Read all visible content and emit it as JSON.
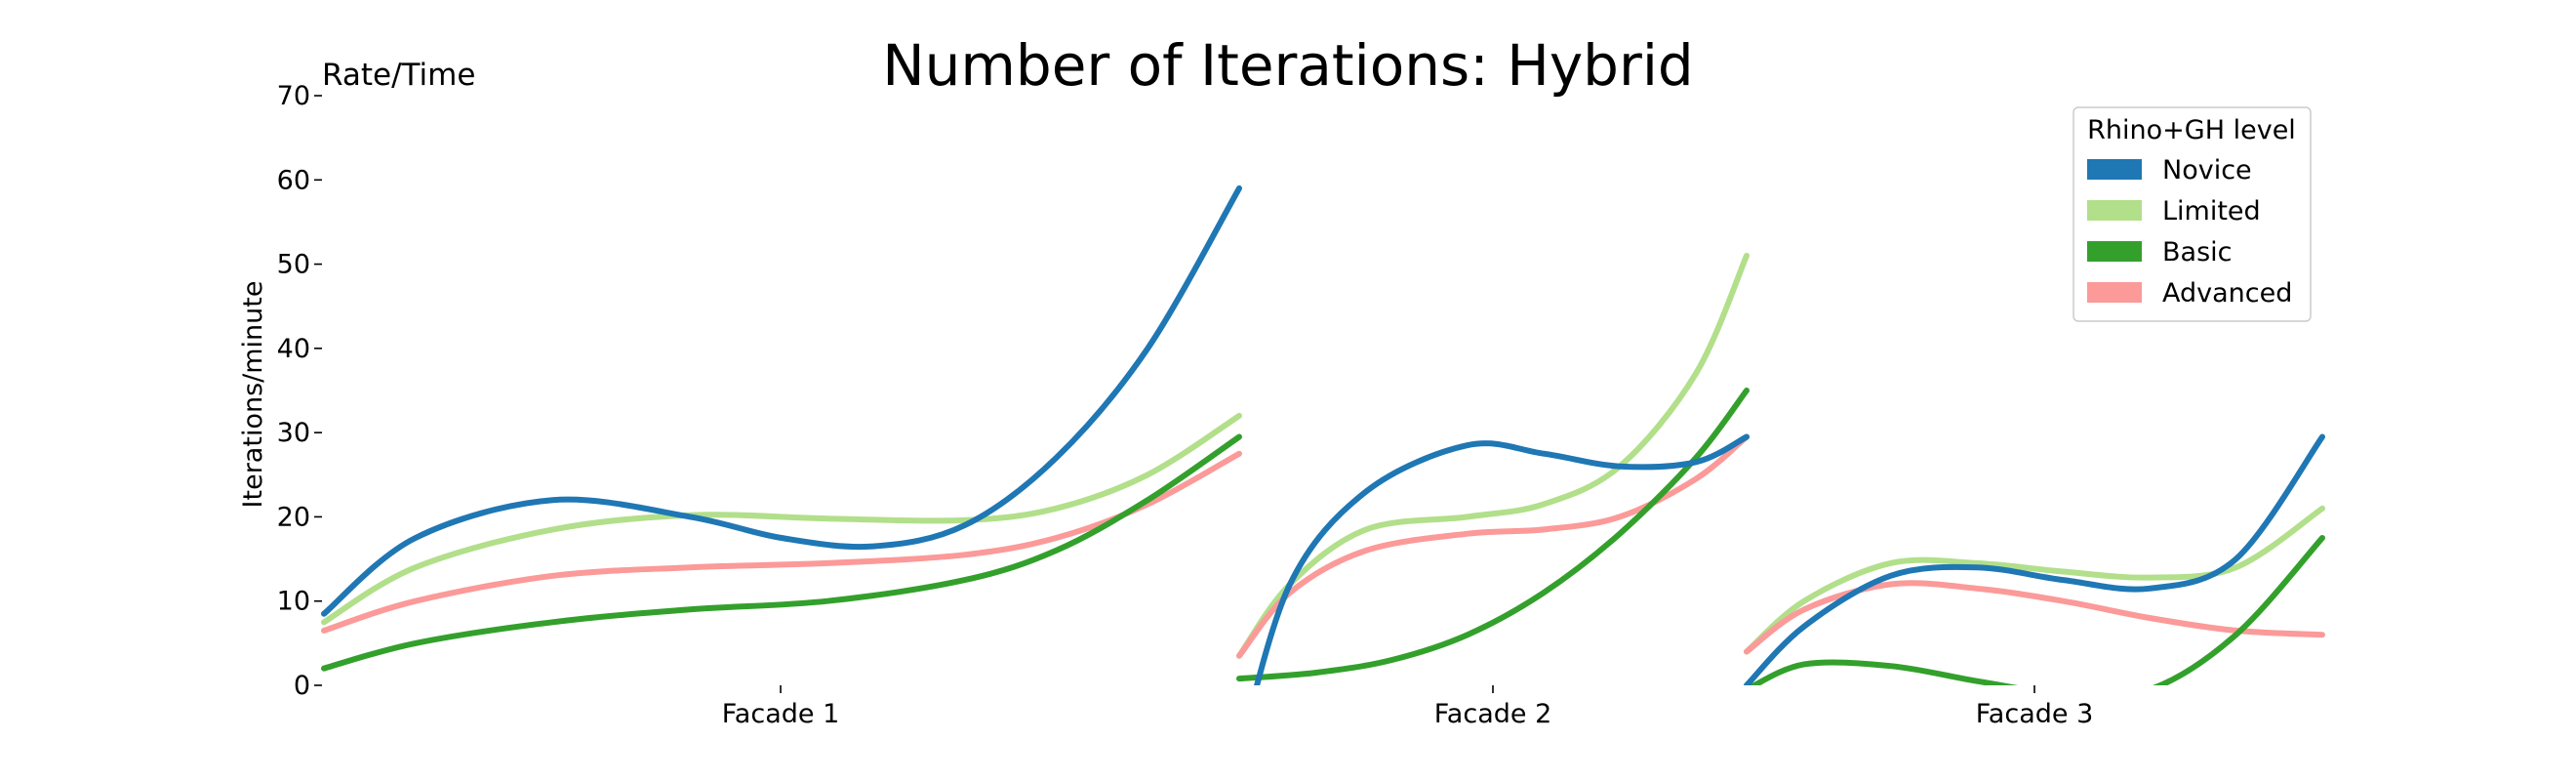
{
  "chart_data": {
    "type": "line",
    "title": "Number of Iterations: Hybrid",
    "corner_label": "Rate/Time",
    "ylabel": "Iterations/minute",
    "xlabel": "",
    "ylim": [
      0,
      70
    ],
    "yticks": [
      0,
      10,
      20,
      30,
      40,
      50,
      60,
      70
    ],
    "grid": false,
    "legend": {
      "title": "Rhino+GH level",
      "position": "top-right"
    },
    "categories": [
      "Facade 1",
      "Facade 2",
      "Facade 3"
    ],
    "series": [
      {
        "name": "Novice",
        "color": "#1f77b4",
        "values": [
          [
            [
              0,
              8.5
            ],
            [
              0.1,
              17.5
            ],
            [
              0.25,
              22
            ],
            [
              0.4,
              20
            ],
            [
              0.5,
              17.5
            ],
            [
              0.6,
              16.5
            ],
            [
              0.7,
              19
            ],
            [
              0.8,
              27
            ],
            [
              0.9,
              40
            ],
            [
              1.0,
              59
            ]
          ],
          [
            [
              0,
              -8
            ],
            [
              0.1,
              12
            ],
            [
              0.25,
              23
            ],
            [
              0.45,
              28.5
            ],
            [
              0.6,
              27.5
            ],
            [
              0.75,
              26
            ],
            [
              0.9,
              26.5
            ],
            [
              1.0,
              29.5
            ]
          ],
          [
            [
              0,
              0
            ],
            [
              0.1,
              7
            ],
            [
              0.25,
              13
            ],
            [
              0.4,
              14
            ],
            [
              0.55,
              12.5
            ],
            [
              0.7,
              11.5
            ],
            [
              0.85,
              15
            ],
            [
              1.0,
              29.5
            ]
          ]
        ]
      },
      {
        "name": "Limited",
        "color": "#b2df8a",
        "values": [
          [
            [
              0,
              7.5
            ],
            [
              0.1,
              14
            ],
            [
              0.25,
              18.5
            ],
            [
              0.4,
              20.2
            ],
            [
              0.55,
              19.8
            ],
            [
              0.7,
              19.6
            ],
            [
              0.8,
              21
            ],
            [
              0.9,
              25
            ],
            [
              1.0,
              32
            ]
          ],
          [
            [
              0,
              3.5
            ],
            [
              0.1,
              12
            ],
            [
              0.25,
              18.5
            ],
            [
              0.45,
              20
            ],
            [
              0.6,
              21.5
            ],
            [
              0.75,
              26
            ],
            [
              0.9,
              37
            ],
            [
              1.0,
              51
            ]
          ],
          [
            [
              0,
              4
            ],
            [
              0.1,
              10
            ],
            [
              0.25,
              14.5
            ],
            [
              0.4,
              14.5
            ],
            [
              0.55,
              13.5
            ],
            [
              0.7,
              12.8
            ],
            [
              0.85,
              14
            ],
            [
              1.0,
              21
            ]
          ]
        ]
      },
      {
        "name": "Basic",
        "color": "#33a02c",
        "values": [
          [
            [
              0,
              2
            ],
            [
              0.1,
              5
            ],
            [
              0.25,
              7.5
            ],
            [
              0.4,
              9
            ],
            [
              0.55,
              10
            ],
            [
              0.7,
              12.5
            ],
            [
              0.8,
              16
            ],
            [
              0.9,
              22
            ],
            [
              1.0,
              29.5
            ]
          ],
          [
            [
              0,
              0.8
            ],
            [
              0.15,
              1.5
            ],
            [
              0.3,
              3
            ],
            [
              0.45,
              6
            ],
            [
              0.6,
              11
            ],
            [
              0.75,
              18
            ],
            [
              0.9,
              27
            ],
            [
              1.0,
              35
            ]
          ],
          [
            [
              0,
              -0.5
            ],
            [
              0.1,
              2.5
            ],
            [
              0.25,
              2.3
            ],
            [
              0.4,
              0.5
            ],
            [
              0.55,
              -1
            ],
            [
              0.7,
              -0.5
            ],
            [
              0.85,
              6
            ],
            [
              1.0,
              17.5
            ]
          ]
        ]
      },
      {
        "name": "Advanced",
        "color": "#fb9a99",
        "values": [
          [
            [
              0,
              6.5
            ],
            [
              0.1,
              10
            ],
            [
              0.25,
              13
            ],
            [
              0.4,
              14
            ],
            [
              0.55,
              14.5
            ],
            [
              0.7,
              15.5
            ],
            [
              0.8,
              17.5
            ],
            [
              0.9,
              21.5
            ],
            [
              1.0,
              27.5
            ]
          ],
          [
            [
              0,
              3.5
            ],
            [
              0.1,
              11
            ],
            [
              0.25,
              16
            ],
            [
              0.45,
              18
            ],
            [
              0.6,
              18.5
            ],
            [
              0.75,
              20
            ],
            [
              0.9,
              24.5
            ],
            [
              1.0,
              29.5
            ]
          ],
          [
            [
              0,
              4
            ],
            [
              0.1,
              9
            ],
            [
              0.25,
              12
            ],
            [
              0.4,
              11.5
            ],
            [
              0.55,
              10
            ],
            [
              0.7,
              8
            ],
            [
              0.85,
              6.5
            ],
            [
              1.0,
              6
            ]
          ]
        ]
      }
    ]
  }
}
